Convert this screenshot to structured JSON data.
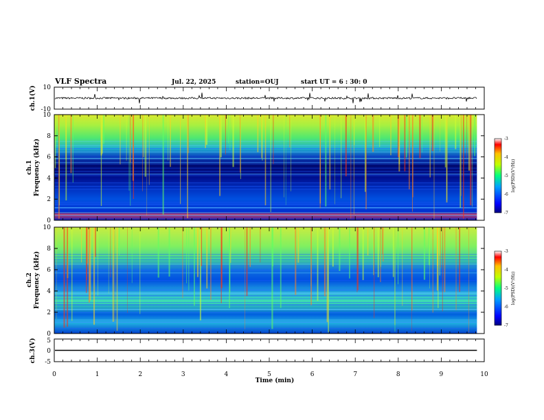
{
  "header": {
    "title": "VLF Spectra",
    "date": "Jul. 22, 2025",
    "station": "station=OUJ",
    "start": "start UT =  6 : 30: 0"
  },
  "chart_data": [
    {
      "type": "line",
      "ylabel": "ch.1(V)",
      "ylim": [
        -10,
        10
      ],
      "yticks": [
        "10",
        "-10"
      ],
      "baseline_value": 0
    },
    {
      "type": "heatmap",
      "ylabel_line1": "ch.1",
      "ylabel_line2": "Frequency (kHz)",
      "ylim": [
        0,
        10
      ],
      "yticks": [
        "0",
        "2",
        "4",
        "6",
        "8",
        "10"
      ],
      "colorbar": {
        "label": "log(PSD)(V²/Hz)",
        "ticks": [
          "-3",
          "-4",
          "-5",
          "-6",
          "-7"
        ],
        "range": [
          -7,
          -3
        ]
      }
    },
    {
      "type": "heatmap",
      "ylabel_line1": "ch.2",
      "ylabel_line2": "Frequency (kHz)",
      "ylim": [
        0,
        10
      ],
      "yticks": [
        "0",
        "2",
        "4",
        "6",
        "8",
        "10"
      ],
      "colorbar": {
        "label": "log(PSD)(V²/Hz)",
        "ticks": [
          "-3",
          "-4",
          "-5",
          "-6",
          "-7"
        ],
        "range": [
          -7,
          -3
        ]
      }
    },
    {
      "type": "line",
      "ylabel": "ch.3(V)",
      "ylim": [
        -5,
        5
      ],
      "yticks": [
        "5",
        "0",
        "-5"
      ],
      "baseline_value": 0
    }
  ],
  "xaxis": {
    "label": "Time (min)",
    "range": [
      0,
      10
    ],
    "ticks": [
      "0",
      "1",
      "2",
      "3",
      "4",
      "5",
      "6",
      "7",
      "8",
      "9",
      "10"
    ],
    "data_end": 9.83
  }
}
